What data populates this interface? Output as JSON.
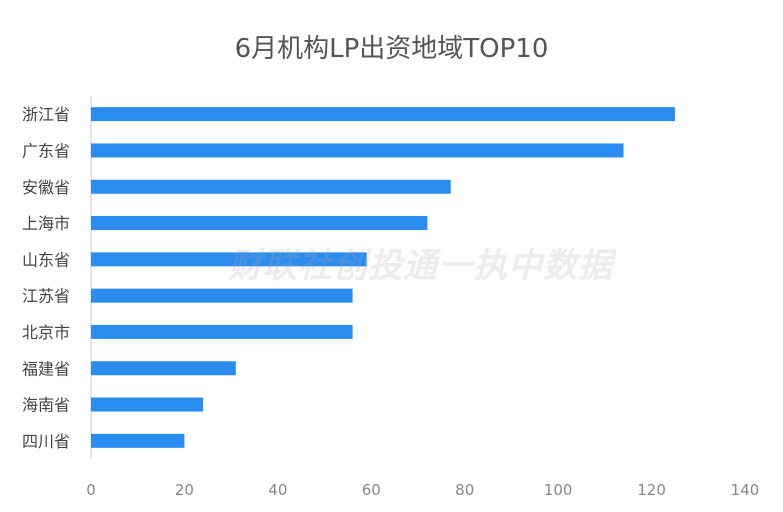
{
  "chart_data": {
    "type": "bar",
    "orientation": "horizontal",
    "title": "6月机构LP出资地域TOP10",
    "categories": [
      "浙江省",
      "广东省",
      "安徽省",
      "上海市",
      "山东省",
      "江苏省",
      "北京市",
      "福建省",
      "海南省",
      "四川省"
    ],
    "values": [
      125,
      114,
      77,
      72,
      59,
      56,
      56,
      31,
      24,
      20
    ],
    "xlim": [
      0,
      140
    ],
    "xticks": [
      0,
      20,
      40,
      60,
      80,
      100,
      120,
      140
    ],
    "xlabel": "",
    "ylabel": "",
    "grid": false,
    "legend": "none",
    "bar_color": "#2B8CF0"
  },
  "watermark": "财联社创投通一执中数据"
}
